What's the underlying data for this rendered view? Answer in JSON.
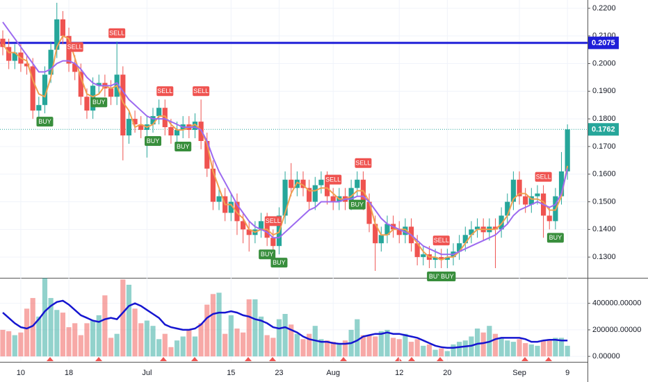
{
  "chart_data": {
    "type": "candlestick",
    "categories": [
      null,
      null,
      null,
      "10",
      null,
      null,
      null,
      null,
      null,
      null,
      null,
      "18",
      null,
      null,
      null,
      null,
      null,
      null,
      null,
      null,
      null,
      null,
      null,
      null,
      "Jul",
      null,
      null,
      null,
      null,
      null,
      null,
      null,
      null,
      null,
      null,
      null,
      null,
      null,
      "15",
      null,
      null,
      null,
      null,
      null,
      null,
      null,
      "23",
      null,
      null,
      null,
      null,
      null,
      null,
      null,
      null,
      "Aug",
      null,
      null,
      null,
      null,
      null,
      null,
      null,
      null,
      null,
      null,
      "12",
      null,
      null,
      null,
      null,
      null,
      null,
      null,
      "20",
      null,
      null,
      null,
      null,
      null,
      null,
      null,
      null,
      null,
      null,
      null,
      "Sep",
      null,
      null,
      null,
      null,
      null,
      null,
      null,
      "9"
    ],
    "open": [
      0.209,
      0.206,
      0.201,
      0.204,
      0.2,
      0.199,
      0.183,
      0.185,
      0.196,
      0.205,
      0.216,
      0.21,
      0.2,
      0.197,
      0.188,
      0.183,
      0.192,
      0.193,
      0.191,
      0.188,
      0.196,
      0.174,
      0.18,
      0.178,
      0.176,
      0.178,
      0.181,
      0.184,
      0.177,
      0.174,
      0.176,
      0.178,
      0.176,
      0.179,
      0.172,
      0.162,
      0.15,
      0.152,
      0.146,
      0.15,
      0.143,
      0.14,
      0.138,
      0.14,
      0.143,
      0.137,
      0.134,
      0.145,
      0.158,
      0.155,
      0.158,
      0.155,
      0.15,
      0.156,
      0.158,
      0.152,
      0.15,
      0.152,
      0.15,
      0.155,
      0.158,
      0.15,
      0.142,
      0.135,
      0.138,
      0.142,
      0.14,
      0.138,
      0.141,
      0.135,
      0.13,
      0.131,
      0.129,
      0.13,
      0.129,
      0.13,
      0.132,
      0.135,
      0.138,
      0.14,
      0.141,
      0.139,
      0.141,
      0.14,
      0.145,
      0.15,
      0.158,
      0.152,
      0.149,
      0.152,
      0.153,
      0.145,
      0.143,
      0.152,
      0.161
    ],
    "high": [
      0.212,
      0.209,
      0.207,
      0.207,
      0.203,
      0.202,
      0.188,
      0.199,
      0.208,
      0.222,
      0.219,
      0.213,
      0.203,
      0.2,
      0.191,
      0.195,
      0.196,
      0.196,
      0.194,
      0.208,
      0.199,
      0.183,
      0.183,
      0.181,
      0.181,
      0.184,
      0.187,
      0.187,
      0.18,
      0.179,
      0.181,
      0.181,
      0.182,
      0.187,
      0.175,
      0.165,
      0.155,
      0.155,
      0.153,
      0.153,
      0.146,
      0.143,
      0.143,
      0.146,
      0.146,
      0.14,
      0.148,
      0.161,
      0.164,
      0.161,
      0.161,
      0.158,
      0.159,
      0.161,
      0.161,
      0.155,
      0.155,
      0.155,
      0.158,
      0.161,
      0.161,
      0.153,
      0.145,
      0.141,
      0.145,
      0.145,
      0.143,
      0.144,
      0.144,
      0.138,
      0.134,
      0.134,
      0.133,
      0.133,
      0.133,
      0.135,
      0.138,
      0.141,
      0.143,
      0.144,
      0.144,
      0.144,
      0.144,
      0.148,
      0.153,
      0.161,
      0.161,
      0.155,
      0.155,
      0.156,
      0.156,
      0.148,
      0.155,
      0.168,
      0.178
    ],
    "low": [
      0.203,
      0.198,
      0.198,
      0.197,
      0.196,
      0.18,
      0.18,
      0.182,
      0.193,
      0.202,
      0.207,
      0.197,
      0.194,
      0.185,
      0.18,
      0.18,
      0.189,
      0.188,
      0.185,
      0.185,
      0.165,
      0.171,
      0.175,
      0.173,
      0.166,
      0.175,
      0.178,
      0.174,
      0.171,
      0.171,
      0.173,
      0.173,
      0.173,
      0.169,
      0.159,
      0.147,
      0.147,
      0.143,
      0.143,
      0.138,
      0.135,
      0.132,
      0.135,
      0.137,
      0.134,
      0.131,
      0.131,
      0.142,
      0.152,
      0.152,
      0.152,
      0.147,
      0.147,
      0.153,
      0.149,
      0.147,
      0.147,
      0.147,
      0.147,
      0.152,
      0.147,
      0.139,
      0.125,
      0.132,
      0.135,
      0.137,
      0.135,
      0.135,
      0.132,
      0.127,
      0.127,
      0.126,
      0.126,
      0.126,
      0.126,
      0.127,
      0.129,
      0.132,
      0.135,
      0.137,
      0.136,
      0.136,
      0.126,
      0.137,
      0.142,
      0.147,
      0.149,
      0.146,
      0.146,
      0.149,
      0.137,
      0.14,
      0.14,
      0.149,
      0.158
    ],
    "close": [
      0.206,
      0.201,
      0.204,
      0.2,
      0.199,
      0.183,
      0.185,
      0.196,
      0.205,
      0.216,
      0.21,
      0.2,
      0.197,
      0.188,
      0.183,
      0.192,
      0.193,
      0.191,
      0.188,
      0.196,
      0.174,
      0.18,
      0.178,
      0.176,
      0.178,
      0.181,
      0.184,
      0.177,
      0.174,
      0.176,
      0.178,
      0.176,
      0.179,
      0.172,
      0.162,
      0.15,
      0.152,
      0.146,
      0.15,
      0.143,
      0.14,
      0.138,
      0.14,
      0.143,
      0.137,
      0.134,
      0.145,
      0.158,
      0.155,
      0.158,
      0.155,
      0.15,
      0.156,
      0.158,
      0.152,
      0.15,
      0.152,
      0.15,
      0.155,
      0.158,
      0.15,
      0.142,
      0.135,
      0.138,
      0.142,
      0.14,
      0.138,
      0.141,
      0.135,
      0.13,
      0.131,
      0.129,
      0.13,
      0.129,
      0.13,
      0.132,
      0.135,
      0.138,
      0.14,
      0.141,
      0.139,
      0.141,
      0.14,
      0.145,
      0.15,
      0.158,
      0.152,
      0.149,
      0.152,
      0.153,
      0.145,
      0.143,
      0.152,
      0.161,
      0.1762
    ],
    "color_up": "#26a69a",
    "color_down": "#ef5350",
    "ylim": [
      0.123,
      0.223
    ],
    "yticks": [
      {
        "value": 0.13,
        "label": "0.1300"
      },
      {
        "value": 0.14,
        "label": "0.1400"
      },
      {
        "value": 0.15,
        "label": "0.1500"
      },
      {
        "value": 0.16,
        "label": "0.1600"
      },
      {
        "value": 0.17,
        "label": "0.1700"
      },
      {
        "value": 0.18,
        "label": "0.1800"
      },
      {
        "value": 0.19,
        "label": "0.1900"
      },
      {
        "value": 0.2,
        "label": "0.2000"
      },
      {
        "value": 0.21,
        "label": "0.2100"
      },
      {
        "value": 0.22,
        "label": "0.2200"
      }
    ],
    "grid": true,
    "series": [
      {
        "color": "#f0a050",
        "values": [
          0.207,
          0.204,
          0.204,
          0.202,
          0.201,
          0.194,
          0.189,
          0.188,
          0.195,
          0.206,
          0.21,
          0.209,
          0.202,
          0.195,
          0.189,
          0.188,
          0.189,
          0.192,
          0.191,
          0.192,
          0.186,
          0.183,
          0.177,
          0.178,
          0.177,
          0.178,
          0.181,
          0.181,
          0.178,
          0.176,
          0.176,
          0.177,
          0.178,
          0.176,
          0.171,
          0.161,
          0.155,
          0.149,
          0.149,
          0.146,
          0.144,
          0.14,
          0.139,
          0.14,
          0.14,
          0.138,
          0.139,
          0.146,
          0.153,
          0.157,
          0.156,
          0.154,
          0.154,
          0.155,
          0.155,
          0.153,
          0.151,
          0.151,
          0.152,
          0.154,
          0.154,
          0.15,
          0.142,
          0.138,
          0.138,
          0.14,
          0.14,
          0.14,
          0.138,
          0.135,
          0.132,
          0.13,
          0.13,
          0.129,
          0.13,
          0.13,
          0.132,
          0.135,
          0.138,
          0.14,
          0.14,
          0.14,
          0.14,
          0.142,
          0.145,
          0.151,
          0.153,
          0.153,
          0.151,
          0.151,
          0.15,
          0.147,
          0.147,
          0.152,
          0.163
        ]
      },
      {
        "color": "#9c6af0",
        "values": [
          0.215,
          0.212,
          0.209,
          0.206,
          0.203,
          0.2,
          0.197,
          0.197,
          0.198,
          0.2,
          0.201,
          0.201,
          0.2,
          0.198,
          0.195,
          0.193,
          0.192,
          0.192,
          0.192,
          0.193,
          0.19,
          0.187,
          0.185,
          0.183,
          0.181,
          0.18,
          0.18,
          0.18,
          0.179,
          0.178,
          0.177,
          0.177,
          0.177,
          0.176,
          0.172,
          0.166,
          0.161,
          0.157,
          0.153,
          0.149,
          0.146,
          0.143,
          0.141,
          0.14,
          0.139,
          0.137,
          0.137,
          0.139,
          0.141,
          0.143,
          0.145,
          0.147,
          0.148,
          0.15,
          0.15,
          0.15,
          0.15,
          0.151,
          0.151,
          0.152,
          0.152,
          0.15,
          0.147,
          0.144,
          0.142,
          0.141,
          0.14,
          0.139,
          0.138,
          0.136,
          0.134,
          0.133,
          0.132,
          0.131,
          0.131,
          0.131,
          0.132,
          0.133,
          0.134,
          0.135,
          0.136,
          0.137,
          0.138,
          0.14,
          0.142,
          0.145,
          0.147,
          0.148,
          0.149,
          0.15,
          0.149,
          0.148,
          0.149,
          0.153,
          0.162
        ]
      }
    ],
    "hline": {
      "value": 0.2075,
      "color": "#1e1ed8"
    },
    "signals": [
      {
        "at": 7,
        "label": "BUY"
      },
      {
        "at": 12,
        "label": "SELL"
      },
      {
        "at": 16,
        "label": "BUY"
      },
      {
        "at": 19,
        "label": "SELL"
      },
      {
        "at": 25,
        "label": "BUY"
      },
      {
        "at": 27,
        "label": "SELL"
      },
      {
        "at": 30,
        "label": "BUY"
      },
      {
        "at": 33,
        "label": "SELL"
      },
      {
        "at": 44,
        "label": "BUY"
      },
      {
        "at": 45,
        "label": "SELL"
      },
      {
        "at": 46,
        "label": "BUY"
      },
      {
        "at": 55,
        "label": "SELL"
      },
      {
        "at": 59,
        "label": "BUY"
      },
      {
        "at": 60,
        "label": "SELL"
      },
      {
        "at": 72,
        "label": "BUY"
      },
      {
        "at": 73,
        "label": "SELL"
      },
      {
        "at": 74,
        "label": "BUY"
      },
      {
        "at": 90,
        "label": "SELL"
      },
      {
        "at": 92,
        "label": "BUY"
      }
    ],
    "volume": {
      "values": [
        200000,
        190000,
        160000,
        180000,
        360000,
        440000,
        300000,
        590000,
        440000,
        350000,
        330000,
        220000,
        250000,
        160000,
        250000,
        270000,
        310000,
        460000,
        140000,
        170000,
        580000,
        540000,
        360000,
        250000,
        270000,
        230000,
        130000,
        170000,
        70000,
        120000,
        150000,
        200000,
        150000,
        250000,
        390000,
        470000,
        480000,
        170000,
        310000,
        210000,
        180000,
        430000,
        430000,
        300000,
        160000,
        140000,
        280000,
        320000,
        240000,
        170000,
        130000,
        170000,
        230000,
        130000,
        120000,
        110000,
        90000,
        120000,
        200000,
        280000,
        160000,
        160000,
        150000,
        190000,
        200000,
        140000,
        130000,
        170000,
        110000,
        130000,
        80000,
        90000,
        50000,
        60000,
        40000,
        90000,
        110000,
        120000,
        150000,
        210000,
        180000,
        230000,
        170000,
        140000,
        120000,
        110000,
        130000,
        100000,
        90000,
        80000,
        120000,
        130000,
        140000,
        140000,
        80000
      ],
      "ma_color": "#1515d0",
      "ma": [
        330000,
        290000,
        250000,
        220000,
        210000,
        230000,
        280000,
        340000,
        380000,
        410000,
        420000,
        390000,
        350000,
        310000,
        290000,
        270000,
        260000,
        280000,
        290000,
        280000,
        330000,
        380000,
        400000,
        380000,
        350000,
        320000,
        290000,
        240000,
        220000,
        210000,
        200000,
        200000,
        210000,
        240000,
        290000,
        320000,
        330000,
        330000,
        340000,
        330000,
        310000,
        300000,
        280000,
        270000,
        250000,
        220000,
        210000,
        220000,
        200000,
        180000,
        150000,
        130000,
        120000,
        110000,
        110000,
        100000,
        95000,
        95000,
        100000,
        120000,
        150000,
        160000,
        170000,
        170000,
        180000,
        170000,
        170000,
        160000,
        150000,
        140000,
        120000,
        100000,
        80000,
        70000,
        65000,
        65000,
        70000,
        75000,
        80000,
        95000,
        100000,
        110000,
        130000,
        140000,
        140000,
        140000,
        140000,
        130000,
        110000,
        110000,
        120000,
        125000,
        125000,
        120000,
        120000
      ],
      "ylim": [
        -36000,
        587000
      ],
      "yticks": [
        {
          "value": 0,
          "label": "0.00000"
        },
        {
          "value": 200000,
          "label": "200000.00000"
        },
        {
          "value": 400000,
          "label": "400000.00000"
        }
      ]
    }
  }
}
